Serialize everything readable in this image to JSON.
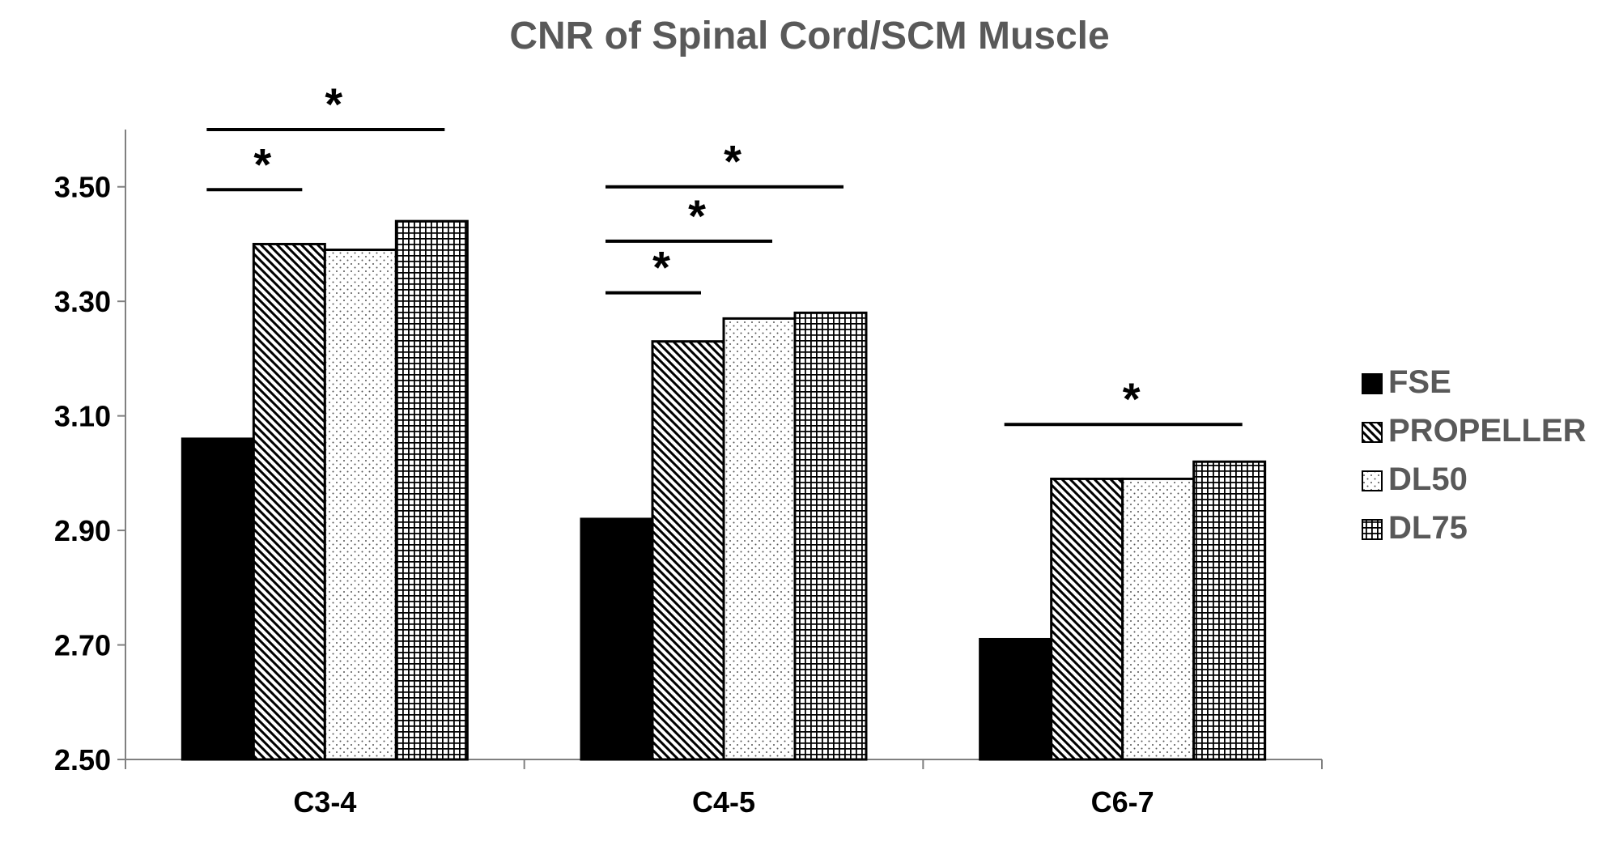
{
  "chart_data": {
    "type": "bar",
    "title": "CNR of Spinal Cord/SCM Muscle",
    "xlabel": "",
    "ylabel": "",
    "categories": [
      "C3-4",
      "C4-5",
      "C6-7"
    ],
    "ylim": [
      2.5,
      3.6
    ],
    "yticks": [
      "2.50",
      "2.70",
      "2.90",
      "3.10",
      "3.30",
      "3.50"
    ],
    "grid": false,
    "legend_position": "right",
    "series": [
      {
        "name": "FSE",
        "pattern": "solid",
        "values": [
          3.06,
          2.92,
          2.71
        ]
      },
      {
        "name": "PROPELLER",
        "pattern": "diagonal",
        "values": [
          3.4,
          3.23,
          2.99
        ]
      },
      {
        "name": "DL50",
        "pattern": "dots",
        "values": [
          3.39,
          3.27,
          2.99
        ]
      },
      {
        "name": "DL75",
        "pattern": "grid",
        "values": [
          3.44,
          3.28,
          3.02
        ]
      }
    ],
    "significance": [
      {
        "category": 0,
        "from_series": 0,
        "to_series": 1,
        "level": 3.495,
        "label": "*"
      },
      {
        "category": 0,
        "from_series": 0,
        "to_series": 3,
        "level": 3.6,
        "label": "*"
      },
      {
        "category": 1,
        "from_series": 0,
        "to_series": 1,
        "level": 3.315,
        "label": "*"
      },
      {
        "category": 1,
        "from_series": 0,
        "to_series": 2,
        "level": 3.405,
        "label": "*"
      },
      {
        "category": 1,
        "from_series": 0,
        "to_series": 3,
        "level": 3.5,
        "label": "*"
      },
      {
        "category": 2,
        "from_series": 0,
        "to_series": 3,
        "level": 3.085,
        "label": "*"
      }
    ],
    "colors": {
      "bar_fill": "#000000",
      "title": "#595959",
      "axis": "#808080"
    }
  }
}
